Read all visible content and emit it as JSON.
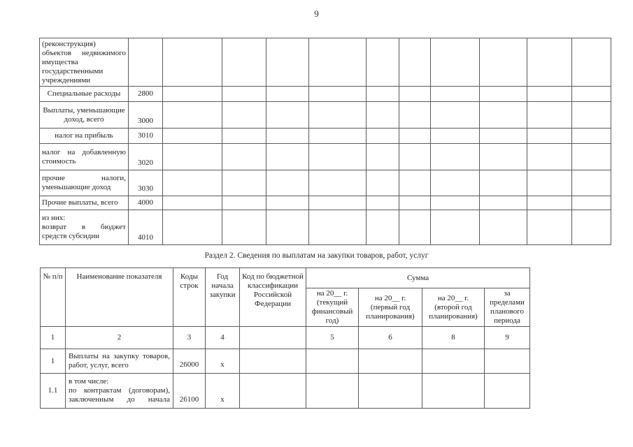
{
  "page": {
    "number": "9"
  },
  "colors": {
    "paper": "#ffffff",
    "ink": "#242424",
    "border": "#5a5a5a"
  },
  "table1": {
    "rows": [
      {
        "label": "(реконструкция) объектов недвижимого имущества государственными учреждениями",
        "code": ""
      },
      {
        "label": "Специальные расходы",
        "code": "2800"
      },
      {
        "label": "Выплаты, уменьшающие доход, всего",
        "code": "3000"
      },
      {
        "label": "налог на прибыль",
        "code": "3010"
      },
      {
        "label": "налог на добавленную стоимость",
        "code": "3020"
      },
      {
        "label": "прочие налоги, уменьшающие доход",
        "code": "3030"
      },
      {
        "label": "Прочие выплаты, всего",
        "code": "4000"
      },
      {
        "label_intro": "из них:",
        "label": "возврат в бюджет средств субсидии",
        "code": "4010"
      }
    ]
  },
  "section2": {
    "caption": "Раздел 2. Сведения по выплатам на закупки товаров, работ, услуг"
  },
  "table2": {
    "headers": {
      "num": "№ п/п",
      "name": "Наименование показателя",
      "codes": "Коды строк",
      "year": "Год начала закупки",
      "kbk": "Код по бюджетной классификации Российской Федерации",
      "sum": "Сумма",
      "sum_col_1": "на 20__ г. (текущий финансовый год)",
      "sum_col_2": "на 20__ г. (первый год планирования)",
      "sum_col_3": "на 20__ г. (второй год планирования)",
      "sum_col_4": "за пределами планового периода"
    },
    "column_numbers": [
      "1",
      "2",
      "3",
      "4",
      "",
      "5",
      "6",
      "8",
      "9"
    ],
    "rows": [
      {
        "num": "1",
        "name": "Выплаты на закупку товаров, работ, услуг, всего",
        "code": "26000",
        "year": "х"
      },
      {
        "num": "1.1",
        "name_intro": "в том числе:",
        "name": "по контрактам (договорам), заключенным до начала",
        "code": "26100",
        "year": "х"
      }
    ]
  }
}
